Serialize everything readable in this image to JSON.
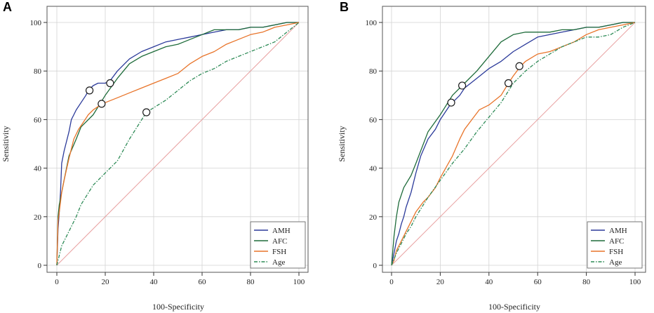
{
  "chart_data": [
    {
      "panel_label": "A",
      "type": "line",
      "xlabel": "100-Specificity",
      "ylabel": "Sensitivity",
      "xlim": [
        0,
        100
      ],
      "ylim": [
        0,
        100
      ],
      "xticks": [
        "0",
        "20",
        "40",
        "60",
        "80",
        "100"
      ],
      "yticks": [
        "0",
        "20",
        "40",
        "60",
        "80",
        "100"
      ],
      "grid": true,
      "legend_position": "bottom-right",
      "reference_line": {
        "name": "Reference",
        "color": "#e8a0a0",
        "x": [
          0,
          100
        ],
        "y": [
          0,
          100
        ]
      },
      "series": [
        {
          "name": "AMH",
          "color": "#2b3a9a",
          "dash": "",
          "x": [
            0,
            0.5,
            1,
            1.5,
            2,
            3,
            4,
            5,
            6,
            7,
            8,
            10,
            12,
            13,
            15,
            17,
            20,
            22,
            25,
            28,
            30,
            35,
            40,
            45,
            50,
            55,
            60,
            65,
            70,
            75,
            80,
            85,
            90,
            95,
            100
          ],
          "y": [
            0,
            15,
            22,
            30,
            42,
            47,
            51,
            55,
            60,
            62,
            64,
            67,
            70,
            72,
            74,
            75,
            75,
            76,
            80,
            83,
            85,
            88,
            90,
            92,
            93,
            94,
            95,
            96,
            97,
            97,
            98,
            98,
            99,
            100,
            100
          ]
        },
        {
          "name": "AFC",
          "color": "#1e6b3a",
          "dash": "",
          "x": [
            0,
            0.5,
            1,
            3,
            5,
            8,
            10,
            15,
            20,
            25,
            30,
            35,
            40,
            45,
            50,
            55,
            60,
            65,
            70,
            75,
            80,
            85,
            90,
            95,
            100
          ],
          "y": [
            0,
            20,
            25,
            35,
            45,
            52,
            57,
            62,
            70,
            77,
            83,
            86,
            88,
            90,
            91,
            93,
            95,
            97,
            97,
            97,
            98,
            98,
            99,
            100,
            100
          ]
        },
        {
          "name": "FSH",
          "color": "#e8742a",
          "dash": "",
          "x": [
            0,
            0.5,
            1,
            2,
            3,
            5,
            7,
            9,
            11,
            13,
            15,
            18,
            20,
            25,
            30,
            35,
            40,
            45,
            50,
            55,
            60,
            65,
            70,
            75,
            80,
            85,
            90,
            95,
            100
          ],
          "y": [
            0,
            18,
            22,
            30,
            35,
            44,
            52,
            56,
            59,
            62,
            64,
            66,
            67,
            69,
            71,
            73,
            75,
            77,
            79,
            83,
            86,
            88,
            91,
            93,
            95,
            96,
            98,
            99,
            100
          ]
        },
        {
          "name": "Age",
          "color": "#2e8b57",
          "dash": "5,2,1.5,2",
          "x": [
            0,
            2,
            5,
            8,
            10,
            15,
            20,
            25,
            30,
            37,
            45,
            50,
            55,
            60,
            65,
            70,
            75,
            80,
            85,
            90,
            95,
            100
          ],
          "y": [
            0,
            8,
            14,
            20,
            25,
            33,
            38,
            43,
            52,
            63,
            68,
            72,
            76,
            79,
            81,
            84,
            86,
            88,
            90,
            92,
            96,
            100
          ]
        }
      ],
      "markers": [
        {
          "series": "AMH",
          "x": 13.5,
          "y": 72
        },
        {
          "series": "AMH",
          "x": 22,
          "y": 75
        },
        {
          "series": "FSH",
          "x": 18.5,
          "y": 66.5
        },
        {
          "series": "Age",
          "x": 37,
          "y": 63
        }
      ]
    },
    {
      "panel_label": "B",
      "type": "line",
      "xlabel": "100-Specificity",
      "ylabel": "Sensitivity",
      "xlim": [
        0,
        100
      ],
      "ylim": [
        0,
        100
      ],
      "xticks": [
        "0",
        "20",
        "40",
        "60",
        "80",
        "100"
      ],
      "yticks": [
        "0",
        "20",
        "40",
        "60",
        "80",
        "100"
      ],
      "grid": true,
      "legend_position": "bottom-right",
      "reference_line": {
        "name": "Reference",
        "color": "#e8a0a0",
        "x": [
          0,
          100
        ],
        "y": [
          0,
          100
        ]
      },
      "series": [
        {
          "name": "AMH",
          "color": "#2b3a9a",
          "dash": "",
          "x": [
            0,
            1,
            2,
            3,
            4,
            5,
            6,
            8,
            10,
            12,
            15,
            18,
            20,
            24,
            28,
            30,
            35,
            40,
            45,
            50,
            55,
            60,
            65,
            70,
            75,
            80,
            85,
            90,
            95,
            100
          ],
          "y": [
            0,
            5,
            10,
            13,
            17,
            20,
            24,
            30,
            38,
            45,
            52,
            56,
            60,
            66,
            70,
            73,
            77,
            81,
            84,
            88,
            91,
            94,
            95,
            96,
            97,
            98,
            98,
            99,
            100,
            100
          ]
        },
        {
          "name": "AFC",
          "color": "#1e6b3a",
          "dash": "",
          "x": [
            0,
            1,
            2,
            3,
            5,
            8,
            10,
            15,
            20,
            25,
            30,
            35,
            40,
            45,
            50,
            55,
            60,
            65,
            70,
            75,
            80,
            85,
            90,
            95,
            100
          ],
          "y": [
            0,
            12,
            20,
            26,
            32,
            37,
            42,
            55,
            62,
            70,
            75,
            80,
            86,
            92,
            95,
            96,
            96,
            96,
            97,
            97,
            98,
            98,
            99,
            100,
            100
          ]
        },
        {
          "name": "FSH",
          "color": "#e8742a",
          "dash": "",
          "x": [
            0,
            1,
            2,
            4,
            6,
            8,
            10,
            13,
            15,
            18,
            20,
            25,
            28,
            30,
            33,
            36,
            40,
            45,
            48,
            50,
            53,
            55,
            60,
            65,
            70,
            75,
            80,
            85,
            90,
            95,
            100
          ],
          "y": [
            0,
            2,
            6,
            10,
            14,
            18,
            22,
            26,
            28,
            32,
            36,
            45,
            52,
            56,
            60,
            64,
            66,
            70,
            75,
            78,
            82,
            84,
            87,
            88,
            90,
            92,
            95,
            97,
            98,
            99,
            100
          ]
        },
        {
          "name": "Age",
          "color": "#2e8b57",
          "dash": "5,2,1.5,2",
          "x": [
            0,
            2,
            4,
            6,
            8,
            10,
            15,
            20,
            25,
            30,
            35,
            40,
            45,
            50,
            55,
            60,
            65,
            70,
            75,
            80,
            85,
            90,
            95,
            100
          ],
          "y": [
            0,
            5,
            9,
            13,
            16,
            20,
            28,
            35,
            42,
            48,
            55,
            61,
            67,
            75,
            80,
            84,
            87,
            90,
            92,
            94,
            94,
            95,
            98,
            100
          ]
        }
      ],
      "markers": [
        {
          "series": "AMH",
          "x": 24.5,
          "y": 67
        },
        {
          "series": "AFC",
          "x": 29,
          "y": 74
        },
        {
          "series": "FSH",
          "x": 48,
          "y": 75
        },
        {
          "series": "Age",
          "x": 52.5,
          "y": 82
        }
      ]
    }
  ]
}
